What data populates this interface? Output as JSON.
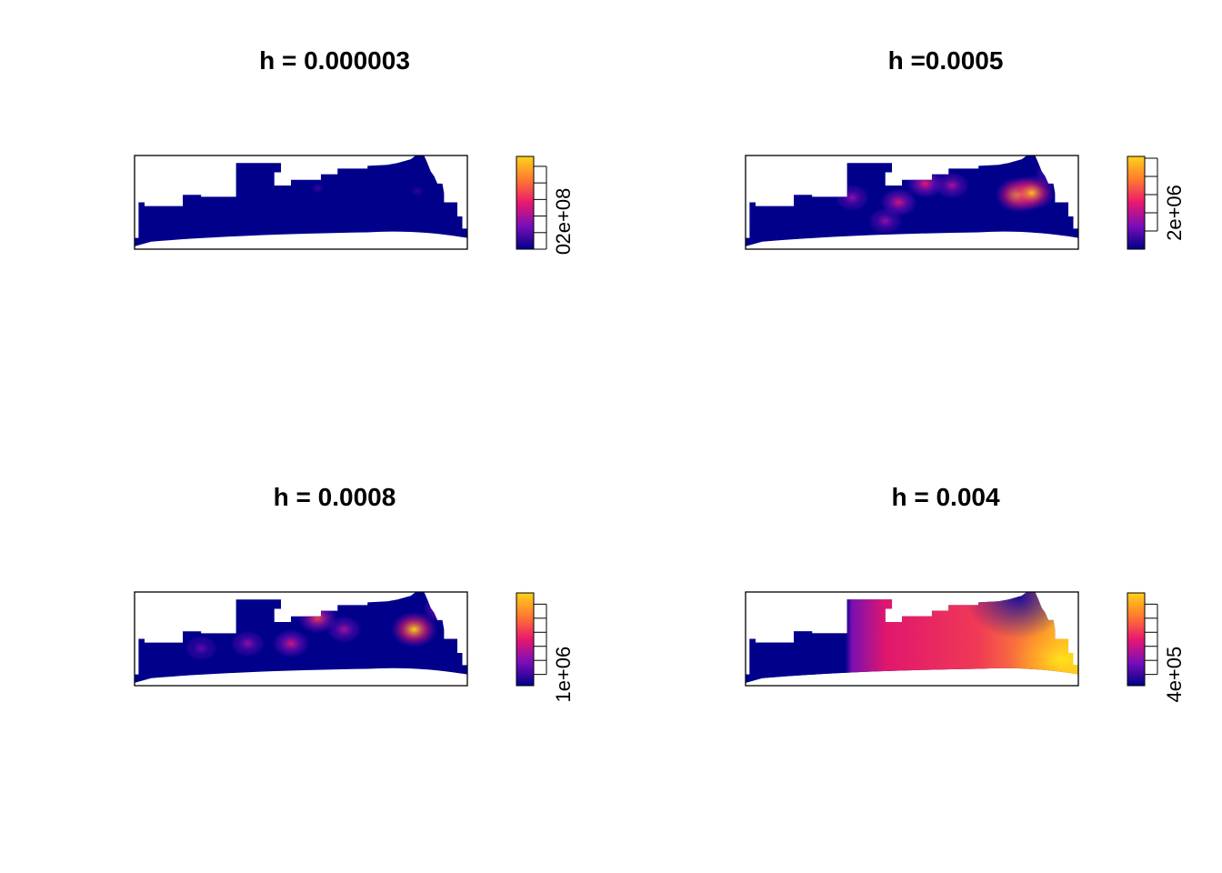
{
  "chart_data": [
    {
      "type": "heatmap",
      "title": "h = 0.000003",
      "colorbar": {
        "tick_labels": [
          "0",
          "2e+08"
        ],
        "ticks": [
          0,
          50000000,
          100000000,
          150000000,
          200000000,
          250000000
        ],
        "range": [
          0,
          280000000
        ]
      },
      "palette": [
        "#00008B",
        "#7A0EB8",
        "#E8186F",
        "#FF7A2E",
        "#FFD21A"
      ],
      "hotspots": [
        {
          "x": 0.55,
          "y": 0.35,
          "value": 0.15
        },
        {
          "x": 0.85,
          "y": 0.38,
          "value": 0.12
        }
      ]
    },
    {
      "type": "heatmap",
      "title": "h =0.0005",
      "colorbar": {
        "tick_labels": [
          "2e+06"
        ],
        "ticks": [
          1000000,
          2000000,
          3000000,
          4000000,
          5000000
        ],
        "range": [
          0,
          5100000
        ]
      },
      "palette": [
        "#00008B",
        "#7A0EB8",
        "#E8186F",
        "#FF7A2E",
        "#FFD21A"
      ],
      "hotspots": [
        {
          "x": 0.82,
          "y": 0.42,
          "value": 1.0
        },
        {
          "x": 0.86,
          "y": 0.4,
          "value": 0.95
        },
        {
          "x": 0.54,
          "y": 0.3,
          "value": 0.5
        },
        {
          "x": 0.46,
          "y": 0.5,
          "value": 0.45
        },
        {
          "x": 0.62,
          "y": 0.32,
          "value": 0.35
        },
        {
          "x": 0.42,
          "y": 0.7,
          "value": 0.3
        },
        {
          "x": 0.92,
          "y": 0.2,
          "value": 0.3
        },
        {
          "x": 0.32,
          "y": 0.45,
          "value": 0.3
        }
      ]
    },
    {
      "type": "heatmap",
      "title": "h = 0.0008",
      "colorbar": {
        "tick_labels": [
          "1e+06"
        ],
        "ticks": [
          1000000,
          1500000,
          2000000,
          2500000,
          3000000,
          3500000
        ],
        "range": [
          600000,
          3900000
        ]
      },
      "palette": [
        "#00008B",
        "#7A0EB8",
        "#E8186F",
        "#FF7A2E",
        "#FFD21A"
      ],
      "hotspots": [
        {
          "x": 0.84,
          "y": 0.4,
          "value": 1.0
        },
        {
          "x": 0.55,
          "y": 0.28,
          "value": 0.6
        },
        {
          "x": 0.47,
          "y": 0.55,
          "value": 0.45
        },
        {
          "x": 0.63,
          "y": 0.4,
          "value": 0.35
        },
        {
          "x": 0.34,
          "y": 0.55,
          "value": 0.3
        },
        {
          "x": 0.92,
          "y": 0.18,
          "value": 0.4
        },
        {
          "x": 0.2,
          "y": 0.6,
          "value": 0.2
        }
      ]
    },
    {
      "type": "heatmap",
      "title": "h = 0.004",
      "colorbar": {
        "tick_labels": [
          "4e+05"
        ],
        "ticks": [
          400000,
          500000,
          600000,
          700000,
          800000,
          900000
        ],
        "range": [
          320000,
          980000
        ]
      },
      "palette": [
        "#00008B",
        "#7A0EB8",
        "#E8186F",
        "#FF7A2E",
        "#FFD21A"
      ],
      "hotspots": [
        {
          "x": 0.82,
          "y": 0.18,
          "value": 1.0
        },
        {
          "x": 0.55,
          "y": 0.4,
          "value": 0.75
        },
        {
          "x": 0.38,
          "y": 0.5,
          "value": 0.6
        }
      ]
    }
  ]
}
